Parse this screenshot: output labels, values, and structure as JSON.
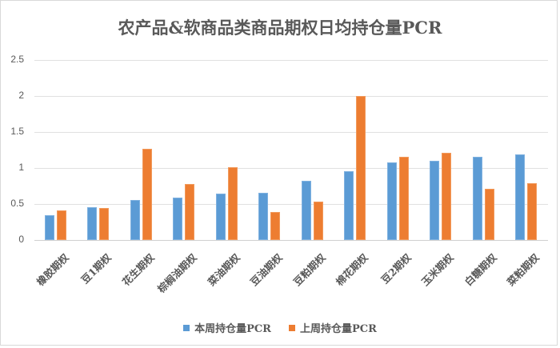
{
  "chart_data": {
    "type": "bar",
    "title": "农产品&软商品类商品期权日均持仓量PCR",
    "xlabel": "",
    "ylabel": "",
    "ylim": [
      0,
      2.5
    ],
    "yticks": [
      "0",
      "0.5",
      "1",
      "1.5",
      "2",
      "2.5"
    ],
    "grid": true,
    "legend_position": "bottom",
    "categories": [
      "橡胶期权",
      "豆1期权",
      "花生期权",
      "棕榈油期权",
      "菜油期权",
      "豆油期权",
      "豆粕期权",
      "棉花期权",
      "豆2期权",
      "玉米期权",
      "白糖期权",
      "菜粕期权"
    ],
    "series": [
      {
        "name": "本周持仓量PCR",
        "color": "#5b9bd5",
        "values": [
          0.34,
          0.46,
          0.56,
          0.59,
          0.64,
          0.66,
          0.82,
          0.96,
          1.08,
          1.1,
          1.16,
          1.19
        ]
      },
      {
        "name": "上周持仓量PCR",
        "color": "#ed7d31",
        "values": [
          0.41,
          0.45,
          1.27,
          0.78,
          1.01,
          0.39,
          0.53,
          2.0,
          1.16,
          1.21,
          0.71,
          0.79
        ]
      }
    ]
  },
  "legend": {
    "items": [
      {
        "label": "本周持仓量PCR",
        "color": "#5b9bd5"
      },
      {
        "label": "上周持仓量PCR",
        "color": "#ed7d31"
      }
    ]
  }
}
